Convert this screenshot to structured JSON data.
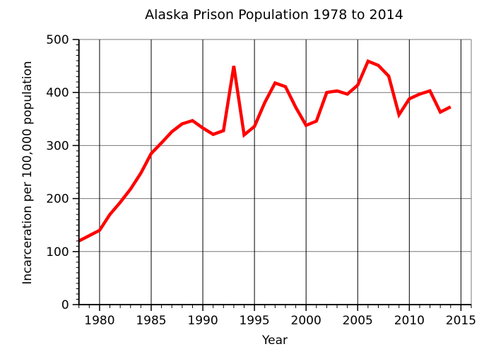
{
  "chart_data": {
    "type": "line",
    "title": "Alaska Prison Population 1978 to 2014",
    "xlabel": "Year",
    "ylabel": "Incarceration per 100,000 population",
    "xlim": [
      1978,
      2016
    ],
    "ylim": [
      0,
      500
    ],
    "xticks": [
      1980,
      1985,
      1990,
      1995,
      2000,
      2005,
      2010,
      2015
    ],
    "yticks": [
      0,
      100,
      200,
      300,
      400,
      500
    ],
    "xtick_labels": [
      "1980",
      "1985",
      "1990",
      "1995",
      "2000",
      "2005",
      "2010",
      "2015"
    ],
    "ytick_labels": [
      "0",
      "100",
      "200",
      "300",
      "400",
      "500"
    ],
    "grid": true,
    "legend": "none",
    "series": [
      {
        "name": "Alaska",
        "color": "#ff0000",
        "x": [
          1978,
          1979,
          1980,
          1981,
          1982,
          1983,
          1984,
          1985,
          1986,
          1987,
          1988,
          1989,
          1990,
          1991,
          1992,
          1993,
          1994,
          1995,
          1996,
          1997,
          1998,
          1999,
          2000,
          2001,
          2002,
          2003,
          2004,
          2005,
          2006,
          2007,
          2008,
          2009,
          2010,
          2011,
          2012,
          2013,
          2014
        ],
        "values": [
          120,
          130,
          140,
          170,
          193,
          218,
          248,
          285,
          305,
          326,
          341,
          347,
          333,
          321,
          328,
          450,
          320,
          336,
          381,
          418,
          411,
          372,
          338,
          346,
          400,
          403,
          397,
          414,
          459,
          451,
          431,
          358,
          388,
          397,
          403,
          363,
          373
        ]
      }
    ]
  }
}
